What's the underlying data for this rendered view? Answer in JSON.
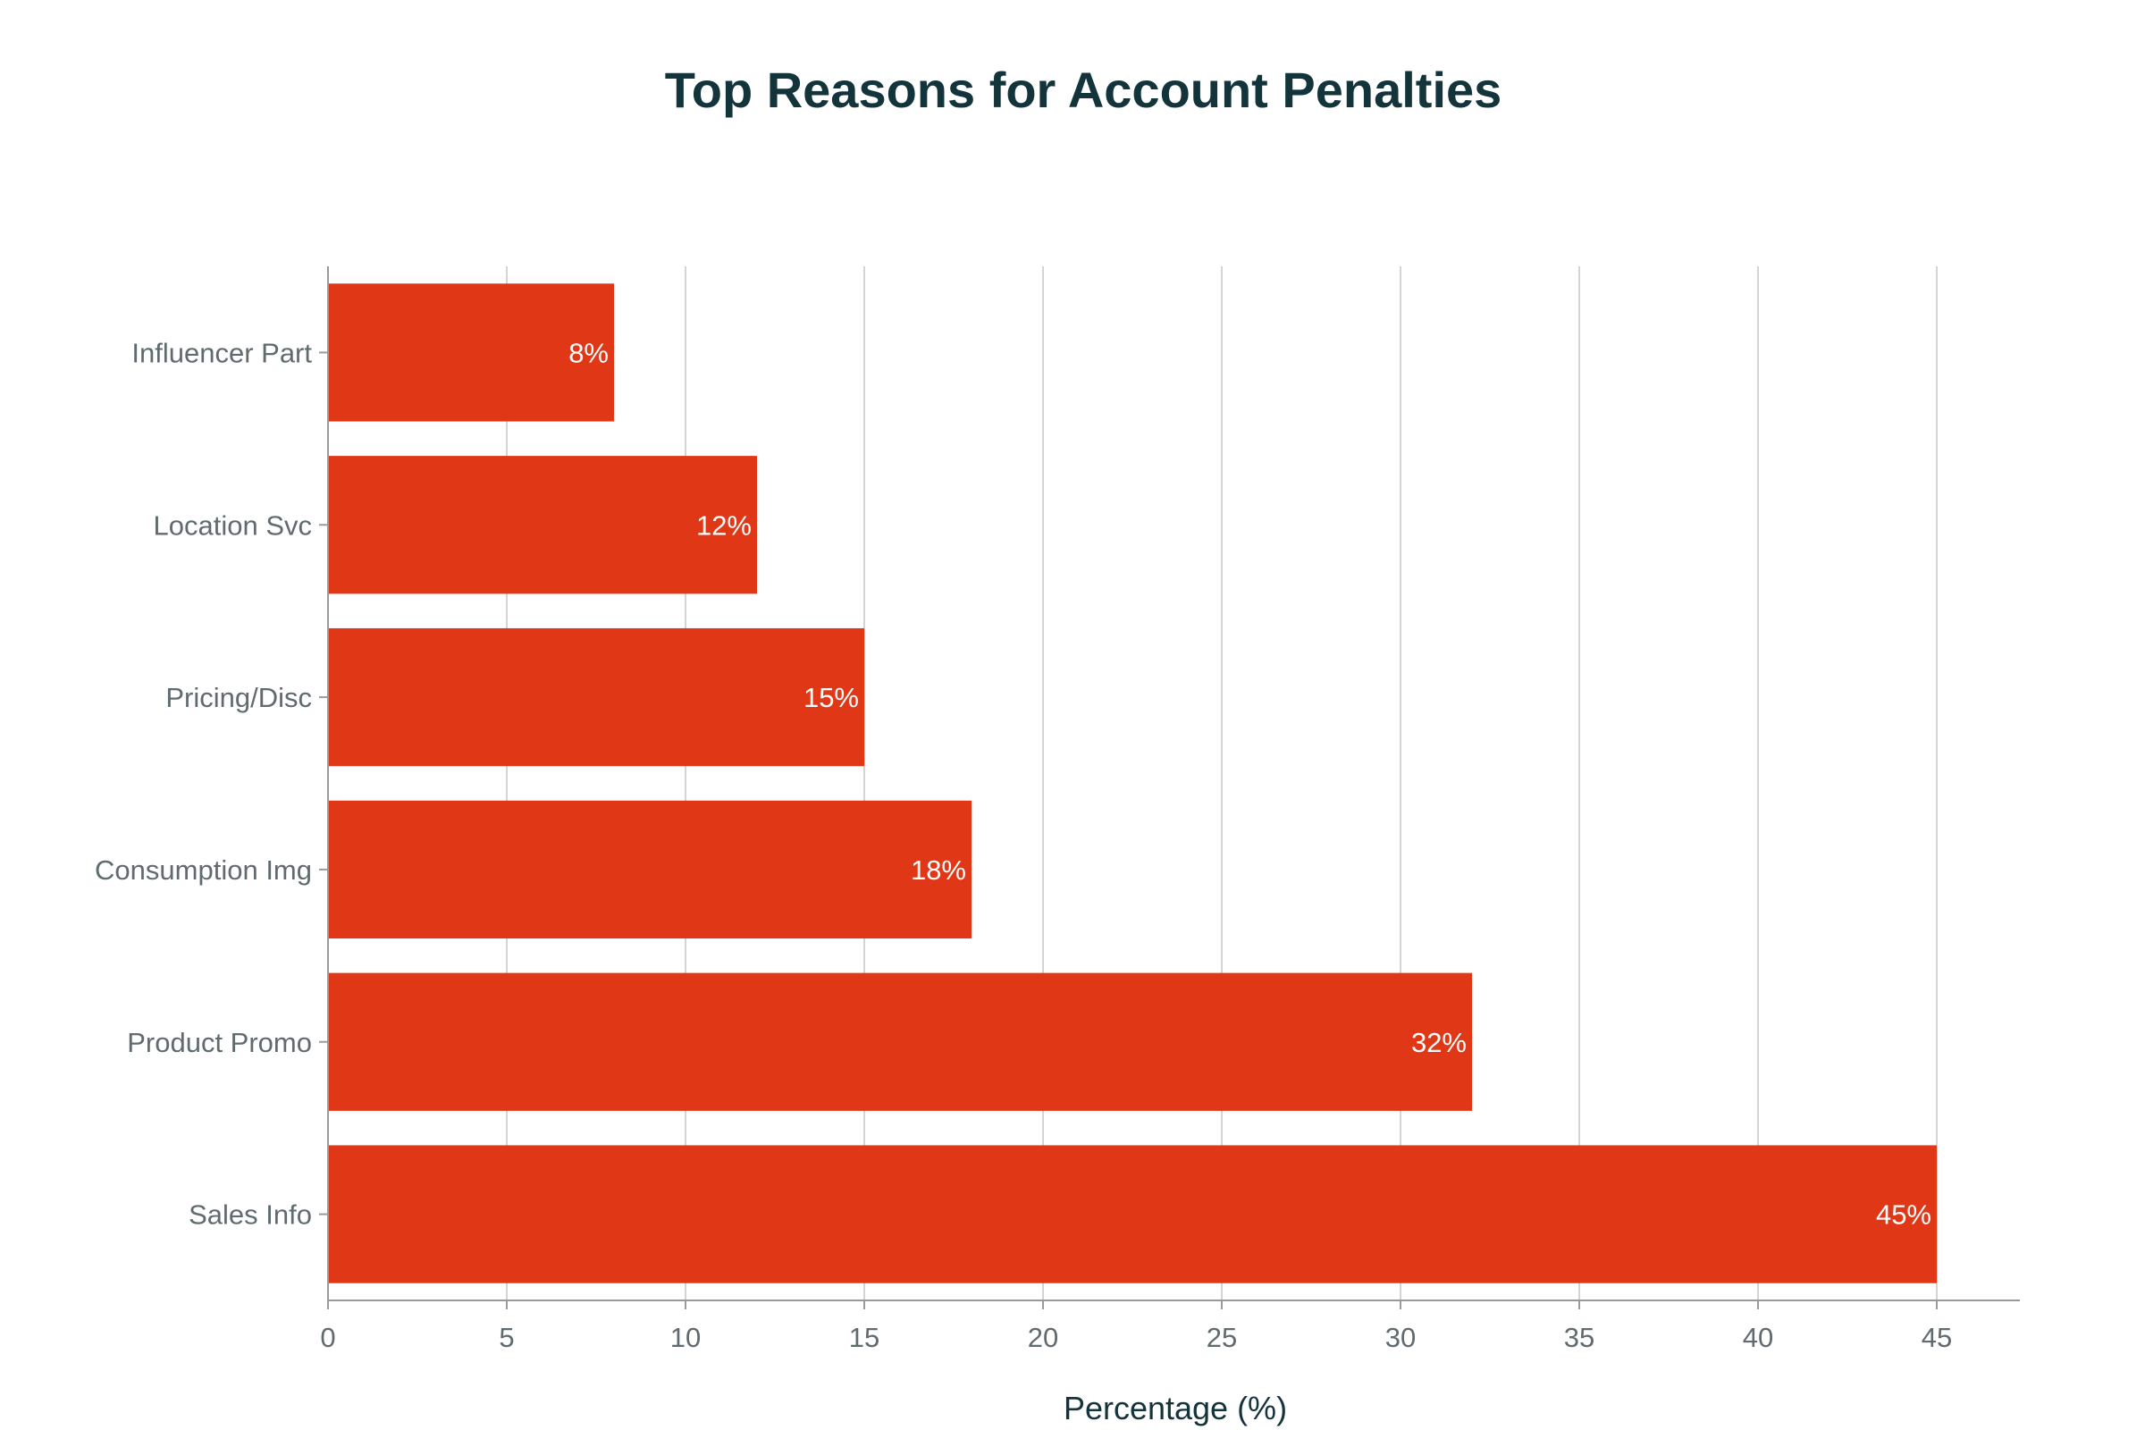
{
  "chart_data": {
    "type": "bar",
    "orientation": "horizontal",
    "title": "Top Reasons for Account Penalties",
    "xlabel": "Percentage (%)",
    "ylabel": "",
    "categories": [
      "Sales Info",
      "Product Promo",
      "Consumption Img",
      "Pricing/Disc",
      "Location Svc",
      "Influencer Part"
    ],
    "values": [
      45,
      32,
      18,
      15,
      12,
      8
    ],
    "value_labels": [
      "45%",
      "32%",
      "18%",
      "15%",
      "12%",
      "8%"
    ],
    "xlim": [
      0,
      47.3
    ],
    "xticks": [
      0,
      5,
      10,
      15,
      20,
      25,
      30,
      35,
      40,
      45
    ],
    "xtick_labels": [
      "0",
      "5",
      "10",
      "15",
      "20",
      "25",
      "30",
      "35",
      "40",
      "45"
    ],
    "grid": "vertical",
    "legend": "none",
    "colors": {
      "bar": "#e03716",
      "title": "#13343b",
      "tick_text": "#5f6b6e",
      "grid": "#d4d4d4",
      "axis": "#9a9a9a",
      "bar_label": "#ffffff"
    }
  }
}
